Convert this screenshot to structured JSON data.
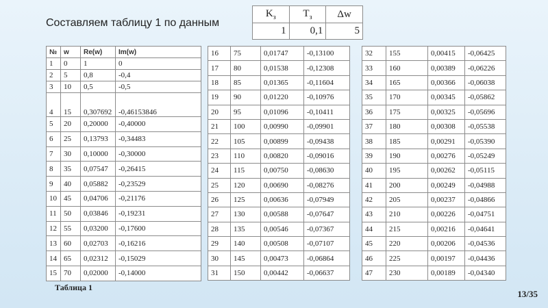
{
  "title": "Составляем таблицу 1 по данным",
  "params_table": {
    "header": [
      {
        "main": "K",
        "sub": "з"
      },
      {
        "main": "T",
        "sub": "з"
      },
      {
        "main": "Δw",
        "sub": null
      }
    ],
    "row": [
      "1",
      "0,1",
      "5"
    ]
  },
  "table1": {
    "header": [
      "№",
      "w",
      "Re(w)",
      "Im(w)"
    ],
    "rows": [
      [
        "1",
        "0",
        "1",
        "0"
      ],
      [
        "2",
        "5",
        "0,8",
        "-0,4"
      ],
      [
        "3",
        "10",
        "0,5",
        "-0,5"
      ],
      [
        "4",
        "15",
        "0,307692",
        "-0,46153846"
      ],
      [
        "5",
        "20",
        "0,20000",
        "-0,40000"
      ],
      [
        "6",
        "25",
        "0,13793",
        "-0,34483"
      ],
      [
        "7",
        "30",
        "0,10000",
        "-0,30000"
      ],
      [
        "8",
        "35",
        "0,07547",
        "-0,26415"
      ],
      [
        "9",
        "40",
        "0,05882",
        "-0,23529"
      ],
      [
        "10",
        "45",
        "0,04706",
        "-0,21176"
      ],
      [
        "11",
        "50",
        "0,03846",
        "-0,19231"
      ],
      [
        "12",
        "55",
        "0,03200",
        "-0,17600"
      ],
      [
        "13",
        "60",
        "0,02703",
        "-0,16216"
      ],
      [
        "14",
        "65",
        "0,02312",
        "-0,15029"
      ],
      [
        "15",
        "70",
        "0,02000",
        "-0,14000"
      ]
    ]
  },
  "table2": {
    "rows": [
      [
        "16",
        "75",
        "0,01747",
        "-0,13100"
      ],
      [
        "17",
        "80",
        "0,01538",
        "-0,12308"
      ],
      [
        "18",
        "85",
        "0,01365",
        "-0,11604"
      ],
      [
        "19",
        "90",
        "0,01220",
        "-0,10976"
      ],
      [
        "20",
        "95",
        "0,01096",
        "-0,10411"
      ],
      [
        "21",
        "100",
        "0,00990",
        "-0,09901"
      ],
      [
        "22",
        "105",
        "0,00899",
        "-0,09438"
      ],
      [
        "23",
        "110",
        "0,00820",
        "-0,09016"
      ],
      [
        "24",
        "115",
        "0,00750",
        "-0,08630"
      ],
      [
        "25",
        "120",
        "0,00690",
        "-0,08276"
      ],
      [
        "26",
        "125",
        "0,00636",
        "-0,07949"
      ],
      [
        "27",
        "130",
        "0,00588",
        "-0,07647"
      ],
      [
        "28",
        "135",
        "0,00546",
        "-0,07367"
      ],
      [
        "29",
        "140",
        "0,00508",
        "-0,07107"
      ],
      [
        "30",
        "145",
        "0,00473",
        "-0,06864"
      ],
      [
        "31",
        "150",
        "0,00442",
        "-0,06637"
      ]
    ]
  },
  "table3": {
    "rows": [
      [
        "32",
        "155",
        "0,00415",
        "-0,06425"
      ],
      [
        "33",
        "160",
        "0,00389",
        "-0,06226"
      ],
      [
        "34",
        "165",
        "0,00366",
        "-0,06038"
      ],
      [
        "35",
        "170",
        "0,00345",
        "-0,05862"
      ],
      [
        "36",
        "175",
        "0,00325",
        "-0,05696"
      ],
      [
        "37",
        "180",
        "0,00308",
        "-0,05538"
      ],
      [
        "38",
        "185",
        "0,00291",
        "-0,05390"
      ],
      [
        "39",
        "190",
        "0,00276",
        "-0,05249"
      ],
      [
        "40",
        "195",
        "0,00262",
        "-0,05115"
      ],
      [
        "41",
        "200",
        "0,00249",
        "-0,04988"
      ],
      [
        "42",
        "205",
        "0,00237",
        "-0,04866"
      ],
      [
        "43",
        "210",
        "0,00226",
        "-0,04751"
      ],
      [
        "44",
        "215",
        "0,00216",
        "-0,04641"
      ],
      [
        "45",
        "220",
        "0,00206",
        "-0,04536"
      ],
      [
        "46",
        "225",
        "0,00197",
        "-0,04436"
      ],
      [
        "47",
        "230",
        "0,00189",
        "-0,04340"
      ]
    ]
  },
  "caption": "Таблица 1",
  "page_number": "13/35"
}
